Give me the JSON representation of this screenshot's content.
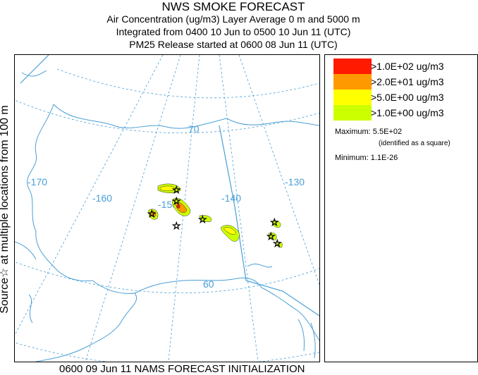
{
  "header": {
    "title": "NWS SMOKE FORECAST",
    "line2": "Air Concentration (ug/m3) Layer Average    0 m and  5000 m",
    "line3": "Integrated from 0400 10 Jun to 0500 10 Jun 11 (UTC)",
    "line4": "PM25 Release started at 0600 08 Jun 11 (UTC)"
  },
  "side_label": "Source☆ at multiple locations  from  100 m",
  "map": {
    "grid_labels": [
      "-170",
      "-160",
      "-150",
      "-140",
      "-130",
      "70",
      "60"
    ]
  },
  "legend": {
    "items": [
      {
        "label": ">1.0E+02 ug/m3",
        "color": "#ff1a00"
      },
      {
        "label": ">2.0E+01 ug/m3",
        "color": "#ff9900"
      },
      {
        "label": ">5.0E+00 ug/m3",
        "color": "#ffff00"
      },
      {
        "label": ">1.0E+00 ug/m3",
        "color": "#ccff00"
      }
    ],
    "maximum": "Maximum: 5.5E+02",
    "maximum_note": "(identified as a square)",
    "minimum": "Minimum: 1.1E-26"
  },
  "footer": "0600 09 Jun 11 NAMS FORECAST INITIALIZATION"
}
